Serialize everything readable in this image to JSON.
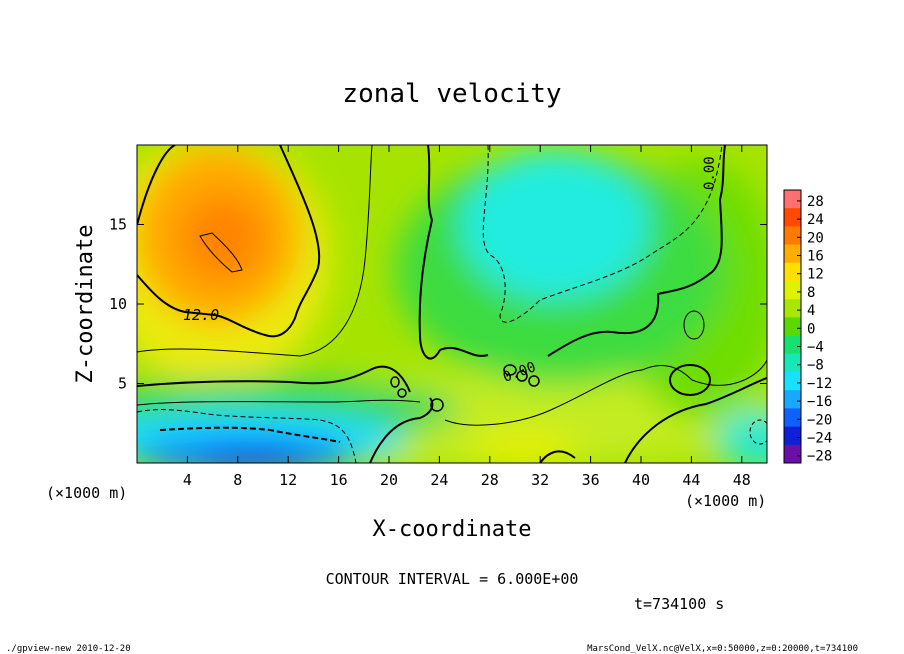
{
  "chart_data": {
    "type": "heatmap",
    "title": "zonal velocity",
    "xlabel": "X-coordinate",
    "ylabel": "Z-coordinate",
    "x_unit": "(×1000 m)",
    "y_unit": "(×1000 m)",
    "xlim": [
      0,
      50
    ],
    "ylim": [
      0,
      20
    ],
    "x_ticks": [
      4,
      8,
      12,
      16,
      20,
      24,
      28,
      32,
      36,
      40,
      44,
      48
    ],
    "y_ticks": [
      5,
      10,
      15
    ],
    "colorbar": {
      "labels": [
        "28",
        "24",
        "20",
        "16",
        "12",
        "8",
        "4",
        "0",
        "−4",
        "−8",
        "−12",
        "−16",
        "−20",
        "−24",
        "−28"
      ],
      "colors": [
        "#ff7070",
        "#ff4a00",
        "#ff7a00",
        "#ffae00",
        "#ffe000",
        "#e0f200",
        "#a8e800",
        "#5ad800",
        "#18e070",
        "#18e8b8",
        "#18e0ff",
        "#18a8ff",
        "#1060ff",
        "#1020d8",
        "#6a10a8"
      ]
    },
    "contour_labels": [
      "12.0",
      "0.00",
      "0.00"
    ],
    "annotations": {
      "contour_interval": "CONTOUR INTERVAL = 6.000E+00",
      "time": "t=734100 s"
    },
    "footer_left": "./gpview-new  2010-12-20",
    "footer_right": "MarsCond_VelX.nc@VelX,x=0:50000,z=0:20000,t=734100"
  }
}
